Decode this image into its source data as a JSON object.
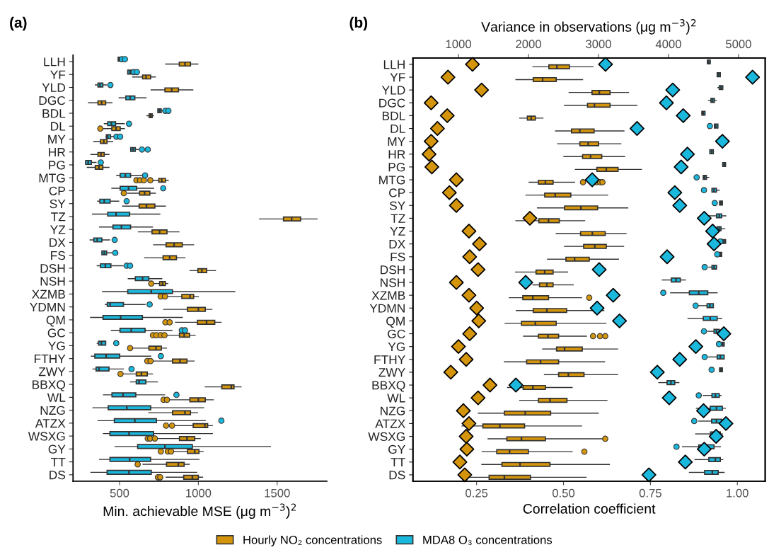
{
  "chart_data": [
    {
      "type": "box",
      "title": "(a)",
      "orientation": "horizontal",
      "xlabel": "Min. achievable MSE (μg m$^{−3}$)$^{2}$",
      "legend": "bottom",
      "categories": [
        "LLH",
        "YF",
        "YLD",
        "DGC",
        "BDL",
        "DL",
        "MY",
        "HR",
        "PG",
        "MTG",
        "CP",
        "SY",
        "TZ",
        "YZ",
        "DX",
        "FS",
        "DSH",
        "NSH",
        "XZMB",
        "YDMN",
        "QM",
        "GC",
        "YG",
        "FTHY",
        "ZWY",
        "BBXQ",
        "WL",
        "NZG",
        "ATZX",
        "WSXG",
        "GY",
        "TT",
        "DS"
      ],
      "xlim": [
        205,
        1815
      ],
      "xticks": [
        500,
        1000,
        1500
      ],
      "series": [
        {
          "name": "Hourly NO₂ concentrations",
          "color": "#d4950c",
          "boxes": [
            {
              "low": 792,
              "q1": 879,
              "median": 915,
              "q3": 950,
              "high": 997
            },
            {
              "low": 583,
              "q1": 646,
              "median": 668,
              "q3": 697,
              "high": 727
            },
            {
              "low": 700,
              "q1": 788,
              "median": 831,
              "q3": 874,
              "high": 965
            },
            {
              "low": 303,
              "q1": 363,
              "median": 386,
              "q3": 412,
              "high": 452
            },
            {
              "low": 674,
              "q1": 688,
              "median": 697,
              "q3": 707,
              "high": 716
            },
            {
              "low": 388,
              "q1": 451,
              "median": 478,
              "q3": 504,
              "high": 531,
              "outliers": [
                378
              ]
            },
            {
              "low": 336,
              "q1": 379,
              "median": 400,
              "q3": 421,
              "high": 457
            },
            {
              "low": 318,
              "q1": 363,
              "median": 382,
              "q3": 403,
              "high": 433
            },
            {
              "low": 295,
              "q1": 346,
              "median": 369,
              "q3": 394,
              "high": 433
            },
            {
              "low": 709,
              "q1": 749,
              "median": 768,
              "q3": 791,
              "high": 809,
              "outliers": [
                607,
                630,
                654,
                695
              ]
            },
            {
              "low": 552,
              "q1": 627,
              "median": 659,
              "q3": 692,
              "high": 727,
              "outliers": [
                527
              ]
            },
            {
              "low": 519,
              "q1": 624,
              "median": 671,
              "q3": 724,
              "high": 791
            },
            {
              "low": 1388,
              "q1": 1540,
              "median": 1592,
              "q3": 1649,
              "high": 1753
            },
            {
              "low": 619,
              "q1": 706,
              "median": 754,
              "q3": 801,
              "high": 877
            },
            {
              "low": 716,
              "q1": 795,
              "median": 846,
              "q3": 898,
              "high": 970
            },
            {
              "low": 659,
              "q1": 776,
              "median": 818,
              "q3": 861,
              "high": 915
            },
            {
              "low": 947,
              "q1": 997,
              "median": 1022,
              "q3": 1053,
              "high": 1109
            },
            {
              "low": 709,
              "q1": 754,
              "median": 773,
              "q3": 791,
              "high": 806,
              "outliers": [
                701
              ]
            },
            {
              "low": 806,
              "q1": 895,
              "median": 947,
              "q3": 970,
              "high": 1000,
              "outliers": [
                761,
                788
              ]
            },
            {
              "low": 780,
              "q1": 930,
              "median": 1000,
              "q3": 1044,
              "high": 1086
            },
            {
              "low": 855,
              "q1": 994,
              "median": 1052,
              "q3": 1104,
              "high": 1144,
              "outliers": [
                791,
                818
              ]
            },
            {
              "low": 798,
              "q1": 880,
              "median": 910,
              "q3": 944,
              "high": 980,
              "outliers": [
                712,
                734,
                761,
                785
              ]
            },
            {
              "low": 585,
              "q1": 686,
              "median": 731,
              "q3": 765,
              "high": 798,
              "outliers": [
                567
              ]
            },
            {
              "low": 709,
              "q1": 836,
              "median": 883,
              "q3": 928,
              "high": 973,
              "outliers": [
                676,
                697
              ]
            },
            {
              "low": 522,
              "q1": 606,
              "median": 639,
              "q3": 676,
              "high": 709,
              "outliers": [
                506
              ]
            },
            {
              "low": 1044,
              "q1": 1149,
              "median": 1209,
              "q3": 1226,
              "high": 1271
            },
            {
              "low": 818,
              "q1": 946,
              "median": 1000,
              "q3": 1044,
              "high": 1095,
              "outliers": [
                779,
                801
              ]
            },
            {
              "low": 686,
              "q1": 836,
              "median": 915,
              "q3": 950,
              "high": 995
            },
            {
              "low": 846,
              "q1": 967,
              "median": 1041,
              "q3": 1059,
              "high": 1089,
              "outliers": [
                795,
                833
              ]
            },
            {
              "low": 746,
              "q1": 880,
              "median": 928,
              "q3": 977,
              "high": 1012,
              "outliers": [
                679,
                694,
                724
              ]
            },
            {
              "low": 836,
              "q1": 931,
              "median": 977,
              "q3": 1004,
              "high": 1030,
              "outliers": [
                762,
                806,
                827
              ]
            },
            {
              "low": 649,
              "q1": 798,
              "median": 873,
              "q3": 910,
              "high": 943,
              "outliers": [
                615
              ]
            },
            {
              "low": 795,
              "q1": 907,
              "median": 962,
              "q3": 1000,
              "high": 1027,
              "outliers": [
                743,
                758
              ]
            }
          ]
        },
        {
          "name": "MDA8 O₃ concentrations",
          "color": "#1bb8de",
          "boxes": [
            {
              "low": 491,
              "q1": 491,
              "median": 497,
              "q3": 504,
              "high": 504,
              "outliers": [
                515,
                534
              ]
            },
            {
              "low": 552,
              "q1": 552,
              "median": 567,
              "q3": 579,
              "high": 579,
              "outliers": [
                590,
                610
              ]
            },
            {
              "low": 346,
              "q1": 363,
              "median": 376,
              "q3": 394,
              "high": 418,
              "outliers": [
                442
              ]
            },
            {
              "low": 497,
              "q1": 540,
              "median": 567,
              "q3": 597,
              "high": 668
            },
            {
              "low": 743,
              "q1": 743,
              "median": 754,
              "q3": 764,
              "high": 776,
              "outliers": [
                790,
                810
              ]
            },
            {
              "low": 403,
              "q1": 425,
              "median": 448,
              "q3": 475,
              "high": 530,
              "outliers": [
                560
              ]
            },
            {
              "low": 416,
              "q1": 416,
              "median": 425,
              "q3": 443,
              "high": 463,
              "outliers": [
                480,
                504
              ]
            },
            {
              "low": 571,
              "q1": 571,
              "median": 585,
              "q3": 600,
              "high": 619,
              "outliers": [
                642,
                679
              ]
            },
            {
              "low": 285,
              "q1": 285,
              "median": 301,
              "q3": 321,
              "high": 351,
              "outliers": [
                381
              ]
            },
            {
              "low": 482,
              "q1": 504,
              "median": 537,
              "q3": 570,
              "high": 642,
              "outliers": [
                662
              ]
            },
            {
              "low": 451,
              "q1": 504,
              "median": 557,
              "q3": 609,
              "high": 716,
              "outliers": [
                777
              ]
            },
            {
              "low": 361,
              "q1": 375,
              "median": 403,
              "q3": 440,
              "high": 495,
              "outliers": [
                545
              ]
            },
            {
              "low": 328,
              "q1": 425,
              "median": 478,
              "q3": 564,
              "high": 756
            },
            {
              "low": 373,
              "q1": 458,
              "median": 512,
              "q3": 570,
              "high": 709
            },
            {
              "low": 313,
              "q1": 337,
              "median": 358,
              "q3": 388,
              "high": 437,
              "outliers": [
                469
              ]
            },
            {
              "low": 388,
              "q1": 388,
              "median": 403,
              "q3": 418,
              "high": 451,
              "outliers": [
                473
              ]
            },
            {
              "low": 358,
              "q1": 379,
              "median": 410,
              "q3": 445,
              "high": 522,
              "outliers": [
                545,
                567
              ]
            },
            {
              "low": 555,
              "q1": 600,
              "median": 646,
              "q3": 686,
              "high": 768
            },
            {
              "low": 392,
              "q1": 552,
              "median": 701,
              "q3": 836,
              "high": 1231
            },
            {
              "low": 410,
              "q1": 422,
              "median": 440,
              "q3": 525,
              "high": 662,
              "outliers": [
                691
              ]
            },
            {
              "low": 316,
              "q1": 395,
              "median": 507,
              "q3": 645,
              "high": 898
            },
            {
              "low": 448,
              "q1": 503,
              "median": 574,
              "q3": 662,
              "high": 833,
              "outliers": [
                895,
                915
              ]
            },
            {
              "low": 358,
              "q1": 367,
              "median": 385,
              "q3": 412,
              "high": 412,
              "outliers": [
                479
              ]
            },
            {
              "low": 321,
              "q1": 343,
              "median": 415,
              "q3": 501,
              "high": 698,
              "outliers": [
                762
              ]
            },
            {
              "low": 331,
              "q1": 351,
              "median": 370,
              "q3": 433,
              "high": 525,
              "outliers": [
                576
              ]
            },
            {
              "low": 570,
              "q1": 606,
              "median": 624,
              "q3": 667,
              "high": 740
            },
            {
              "low": 398,
              "q1": 452,
              "median": 522,
              "q3": 603,
              "high": 786,
              "outliers": [
                861
              ]
            },
            {
              "low": 331,
              "q1": 428,
              "median": 546,
              "q3": 698,
              "high": 1034
            },
            {
              "low": 363,
              "q1": 467,
              "median": 597,
              "q3": 734,
              "high": 1044,
              "outliers": [
                1146
              ]
            },
            {
              "low": 397,
              "q1": 439,
              "median": 560,
              "q3": 716,
              "high": 1089
            },
            {
              "low": 472,
              "q1": 615,
              "median": 788,
              "q3": 962,
              "high": 1458
            },
            {
              "low": 373,
              "q1": 439,
              "median": 564,
              "q3": 697,
              "high": 1004
            },
            {
              "low": 318,
              "q1": 421,
              "median": 560,
              "q3": 701,
              "high": 989
            }
          ]
        }
      ]
    },
    {
      "type": "box",
      "title": "(b)",
      "orientation": "horizontal",
      "xlabel": "Correlation coefficient",
      "x2label": "Variance in observations (μg m$^{−3}$)$^{2}$",
      "legend": "bottom",
      "categories": [
        "LLH",
        "YF",
        "YLD",
        "DGC",
        "BDL",
        "DL",
        "MY",
        "HR",
        "PG",
        "MTG",
        "CP",
        "SY",
        "TZ",
        "YZ",
        "DX",
        "FS",
        "DSH",
        "NSH",
        "XZMB",
        "YDMN",
        "QM",
        "GC",
        "YG",
        "FTHY",
        "ZWY",
        "BBXQ",
        "WL",
        "NZG",
        "ATZX",
        "WSXG",
        "GY",
        "TT",
        "DS"
      ],
      "xlim": [
        0.067,
        1.08
      ],
      "xticks": [
        {
          "value": 0.25,
          "label": "0.25"
        },
        {
          "value": 0.5,
          "label": "0.50"
        },
        {
          "value": 0.75,
          "label": "0.75"
        },
        {
          "value": 1.0,
          "label": "1.00"
        }
      ],
      "x2lim": [
        350,
        5380
      ],
      "x2ticks": [
        1000,
        2000,
        3000,
        4000,
        5000
      ],
      "series": [
        {
          "name": "Hourly NO₂ concentrations",
          "color": "#d4950c",
          "boxes": [
            {
              "low": 0.412,
              "q1": 0.458,
              "median": 0.481,
              "q3": 0.517,
              "high": 0.585
            },
            {
              "low": 0.363,
              "q1": 0.413,
              "median": 0.44,
              "q3": 0.479,
              "high": 0.555
            },
            {
              "low": 0.516,
              "q1": 0.582,
              "median": 0.603,
              "q3": 0.634,
              "high": 0.687
            },
            {
              "low": 0.503,
              "q1": 0.569,
              "median": 0.589,
              "q3": 0.634,
              "high": 0.711
            },
            {
              "low": 0.374,
              "q1": 0.396,
              "median": 0.407,
              "q3": 0.419,
              "high": 0.441
            },
            {
              "low": 0.477,
              "q1": 0.523,
              "median": 0.547,
              "q3": 0.588,
              "high": 0.674
            },
            {
              "low": 0.483,
              "q1": 0.547,
              "median": 0.571,
              "q3": 0.601,
              "high": 0.665
            },
            {
              "low": 0.501,
              "q1": 0.555,
              "median": 0.578,
              "q3": 0.61,
              "high": 0.676
            },
            {
              "low": 0.534,
              "q1": 0.596,
              "median": 0.623,
              "q3": 0.657,
              "high": 0.724
            },
            {
              "low": 0.401,
              "q1": 0.428,
              "median": 0.448,
              "q3": 0.47,
              "high": 0.532,
              "outliers": [
                0.556,
                0.594,
                0.605,
                0.612
              ]
            },
            {
              "low": 0.392,
              "q1": 0.446,
              "median": 0.476,
              "q3": 0.521,
              "high": 0.627
            },
            {
              "low": 0.425,
              "q1": 0.503,
              "median": 0.55,
              "q3": 0.598,
              "high": 0.685
            },
            {
              "low": 0.363,
              "q1": 0.429,
              "median": 0.457,
              "q3": 0.488,
              "high": 0.561
            },
            {
              "low": 0.479,
              "q1": 0.549,
              "median": 0.583,
              "q3": 0.62,
              "high": 0.68
            },
            {
              "low": 0.503,
              "q1": 0.558,
              "median": 0.59,
              "q3": 0.623,
              "high": 0.673
            },
            {
              "low": 0.454,
              "q1": 0.507,
              "median": 0.532,
              "q3": 0.574,
              "high": 0.658
            },
            {
              "low": 0.362,
              "q1": 0.421,
              "median": 0.446,
              "q3": 0.47,
              "high": 0.512
            },
            {
              "low": 0.412,
              "q1": 0.431,
              "median": 0.452,
              "q3": 0.47,
              "high": 0.528
            },
            {
              "low": 0.344,
              "q1": 0.383,
              "median": 0.412,
              "q3": 0.457,
              "high": 0.552,
              "outliers": [
                0.574
              ]
            },
            {
              "low": 0.364,
              "q1": 0.413,
              "median": 0.452,
              "q3": 0.509,
              "high": 0.616
            },
            {
              "low": 0.332,
              "q1": 0.379,
              "median": 0.419,
              "q3": 0.479,
              "high": 0.622
            },
            {
              "low": 0.385,
              "q1": 0.428,
              "median": 0.455,
              "q3": 0.486,
              "high": 0.566,
              "outliers": [
                0.585,
                0.605,
                0.62
              ]
            },
            {
              "low": 0.44,
              "q1": 0.48,
              "median": 0.503,
              "q3": 0.554,
              "high": 0.656
            },
            {
              "low": 0.33,
              "q1": 0.394,
              "median": 0.434,
              "q3": 0.486,
              "high": 0.618
            },
            {
              "low": 0.445,
              "q1": 0.486,
              "median": 0.514,
              "q3": 0.559,
              "high": 0.656
            },
            {
              "low": 0.339,
              "q1": 0.384,
              "median": 0.412,
              "q3": 0.448,
              "high": 0.525
            },
            {
              "low": 0.374,
              "q1": 0.428,
              "median": 0.461,
              "q3": 0.51,
              "high": 0.625
            },
            {
              "low": 0.255,
              "q1": 0.33,
              "median": 0.39,
              "q3": 0.463,
              "high": 0.6
            },
            {
              "low": 0.208,
              "q1": 0.268,
              "median": 0.317,
              "q3": 0.388,
              "high": 0.552
            },
            {
              "low": 0.283,
              "q1": 0.337,
              "median": 0.379,
              "q3": 0.448,
              "high": 0.614,
              "outliers": [
                0.62
              ]
            },
            {
              "low": 0.266,
              "q1": 0.308,
              "median": 0.345,
              "q3": 0.399,
              "high": 0.525,
              "outliers": [
                0.56
              ]
            },
            {
              "low": 0.265,
              "q1": 0.323,
              "median": 0.375,
              "q3": 0.461,
              "high": 0.632
            },
            {
              "low": 0.23,
              "q1": 0.286,
              "median": 0.33,
              "q3": 0.405,
              "high": 0.565
            }
          ]
        },
        {
          "name": "MDA8 O₃ concentrations",
          "color": "#1bb8de",
          "boxes": [
            {
              "low": 0.914,
              "q1": 0.914,
              "median": 0.917,
              "q3": 0.922,
              "high": 0.922
            },
            {
              "low": 0.942,
              "q1": 0.942,
              "median": 0.946,
              "q3": 0.951,
              "high": 0.951
            },
            {
              "low": 0.944,
              "q1": 0.948,
              "median": 0.953,
              "q3": 0.958,
              "high": 0.958
            },
            {
              "low": 0.917,
              "q1": 0.924,
              "median": 0.929,
              "q3": 0.934,
              "high": 0.939
            },
            {
              "low": 0.898,
              "q1": 0.898,
              "median": 0.902,
              "q3": 0.907,
              "high": 0.907
            },
            {
              "low": 0.934,
              "q1": 0.934,
              "median": 0.938,
              "q3": 0.944,
              "high": 0.944,
              "outliers": [
                0.921
              ]
            },
            {
              "low": 0.948,
              "q1": 0.948,
              "median": 0.953,
              "q3": 0.957,
              "high": 0.957
            },
            {
              "low": 0.921,
              "q1": 0.921,
              "median": 0.926,
              "q3": 0.931,
              "high": 0.931
            },
            {
              "low": 0.958,
              "q1": 0.958,
              "median": 0.962,
              "q3": 0.966,
              "high": 0.966
            },
            {
              "low": 0.902,
              "q1": 0.902,
              "median": 0.906,
              "q3": 0.911,
              "high": 0.918,
              "outliers": [
                0.883
              ]
            },
            {
              "low": 0.927,
              "q1": 0.927,
              "median": 0.933,
              "q3": 0.94,
              "high": 0.948,
              "outliers": [
                0.904
              ]
            },
            {
              "low": 0.949,
              "q1": 0.949,
              "median": 0.953,
              "q3": 0.957,
              "high": 0.957,
              "outliers": [
                0.935
              ]
            },
            {
              "low": 0.915,
              "q1": 0.94,
              "median": 0.948,
              "q3": 0.955,
              "high": 0.967
            },
            {
              "low": 0.942,
              "q1": 0.942,
              "median": 0.948,
              "q3": 0.953,
              "high": 0.964
            },
            {
              "low": 0.958,
              "q1": 0.958,
              "median": 0.962,
              "q3": 0.966,
              "high": 0.966,
              "outliers": [
                0.951
              ]
            },
            {
              "low": 0.949,
              "q1": 0.949,
              "median": 0.951,
              "q3": 0.955,
              "high": 0.955,
              "outliers": [
                0.942
              ]
            },
            {
              "low": 0.918,
              "q1": 0.927,
              "median": 0.933,
              "q3": 0.94,
              "high": 0.94,
              "outliers": [
                0.906
              ]
            },
            {
              "low": 0.784,
              "q1": 0.81,
              "median": 0.824,
              "q3": 0.836,
              "high": 0.851
            },
            {
              "low": 0.808,
              "q1": 0.862,
              "median": 0.889,
              "q3": 0.915,
              "high": 0.942,
              "outliers": [
                0.787
              ]
            },
            {
              "low": 0.888,
              "q1": 0.913,
              "median": 0.921,
              "q3": 0.931,
              "high": 0.931,
              "outliers": [
                0.88
              ]
            },
            {
              "low": 0.858,
              "q1": 0.902,
              "median": 0.922,
              "q3": 0.942,
              "high": 0.955
            },
            {
              "low": 0.915,
              "q1": 0.933,
              "median": 0.94,
              "q3": 0.948,
              "high": 0.955,
              "outliers": [
                0.904
              ]
            },
            {
              "low": 0.956,
              "q1": 0.956,
              "median": 0.958,
              "q3": 0.962,
              "high": 0.962,
              "outliers": [
                0.947
              ]
            },
            {
              "low": 0.916,
              "q1": 0.942,
              "median": 0.951,
              "q3": 0.962,
              "high": 0.962,
              "outliers": [
                0.906
              ]
            },
            {
              "low": 0.949,
              "q1": 0.949,
              "median": 0.953,
              "q3": 0.957,
              "high": 0.957,
              "outliers": [
                0.926
              ]
            },
            {
              "low": 0.774,
              "q1": 0.798,
              "median": 0.809,
              "q3": 0.82,
              "high": 0.832
            },
            {
              "low": 0.902,
              "q1": 0.927,
              "median": 0.937,
              "q3": 0.948,
              "high": 0.953,
              "outliers": [
                0.889
              ]
            },
            {
              "low": 0.882,
              "q1": 0.922,
              "median": 0.94,
              "q3": 0.957,
              "high": 0.966
            },
            {
              "low": 0.889,
              "q1": 0.926,
              "median": 0.94,
              "q3": 0.955,
              "high": 0.955,
              "outliers": [
                0.876
              ]
            },
            {
              "low": 0.88,
              "q1": 0.923,
              "median": 0.937,
              "q3": 0.951,
              "high": 0.957
            },
            {
              "low": 0.842,
              "q1": 0.889,
              "median": 0.907,
              "q3": 0.933,
              "high": 0.951,
              "outliers": [
                0.825
              ]
            },
            {
              "low": 0.878,
              "q1": 0.918,
              "median": 0.937,
              "q3": 0.951,
              "high": 0.958
            },
            {
              "low": 0.862,
              "q1": 0.906,
              "median": 0.928,
              "q3": 0.945,
              "high": 0.962
            }
          ]
        },
        {
          "type": "scatter",
          "axis": "x2",
          "marker": "diamond",
          "color": "#d4950c",
          "values": [
            1200,
            850,
            1330,
            610,
            840,
            700,
            610,
            580,
            620,
            970,
            870,
            970,
            2020,
            1150,
            1300,
            1160,
            1280,
            970,
            1150,
            1260,
            1290,
            1160,
            1000,
            1110,
            890,
            1450,
            1280,
            1070,
            1150,
            1110,
            1120,
            1020,
            1090
          ]
        },
        {
          "type": "scatter",
          "axis": "x2",
          "marker": "diamond",
          "color": "#1bb8de",
          "values": [
            3100,
            5200,
            4060,
            3970,
            4210,
            3550,
            4770,
            4270,
            4180,
            2910,
            4090,
            4160,
            4510,
            4630,
            4650,
            3980,
            3010,
            1960,
            3210,
            2980,
            3300,
            4790,
            4390,
            4160,
            3840,
            1820,
            4010,
            4500,
            4820,
            4680,
            4510,
            4240,
            3720
          ]
        }
      ]
    }
  ]
}
